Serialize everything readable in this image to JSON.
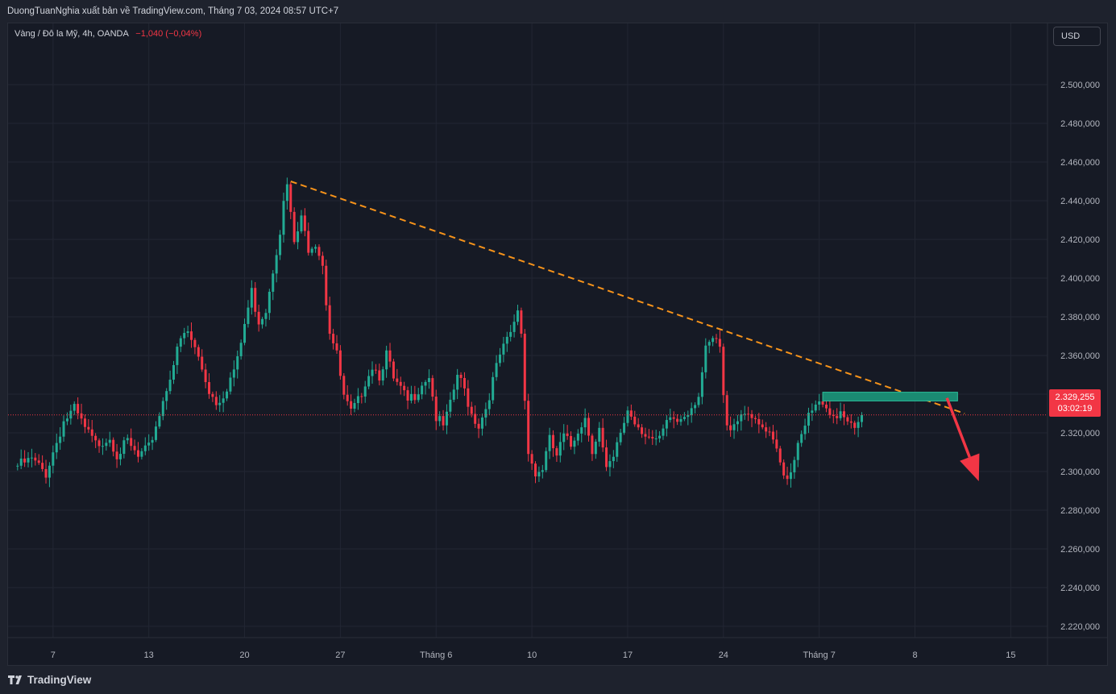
{
  "header": {
    "attribution": "DuongTuanNghia xuất bản về TradingView.com, Tháng 7 03, 2024 08:57 UTC+7"
  },
  "legend": {
    "symbol": "Vàng / Đô la Mỹ, 4h, OANDA",
    "change": "−1,040 (−0,04%)"
  },
  "currency_button": "USD",
  "price_badge": {
    "price": "2.329,255",
    "countdown": "03:02:19"
  },
  "footer": {
    "logo_text": "TradingView"
  },
  "colors": {
    "up": "#22ab94",
    "down": "#f23645",
    "trendline": "#f7931a",
    "zone": "#1a8a72",
    "arrow": "#f23645",
    "grid": "#222633",
    "axis_text": "#b2b5be"
  },
  "chart_data": {
    "type": "candlestick",
    "title": "Vàng / Đô la Mỹ, 4h, OANDA",
    "ylim": [
      2210,
      2510
    ],
    "y_ticks": [
      2500,
      2480,
      2460,
      2440,
      2420,
      2400,
      2380,
      2360,
      2340,
      2320,
      2300,
      2280,
      2260,
      2240,
      2220
    ],
    "y_tick_labels": [
      "2.500,000",
      "2.480,000",
      "2.460,000",
      "2.440,000",
      "2.420,000",
      "2.400,000",
      "2.380,000",
      "2.360,000",
      "2.340,000",
      "2.320,000",
      "2.300,000",
      "2.280,000",
      "2.260,000",
      "2.240,000",
      "2.220,000"
    ],
    "x_ticks": [
      "7",
      "13",
      "20",
      "27",
      "Tháng 6",
      "10",
      "17",
      "24",
      "Tháng 7",
      "8",
      "15"
    ],
    "last_price": 2329.255,
    "price_path": [
      [
        0,
        2303
      ],
      [
        4,
        2306
      ],
      [
        8,
        2299
      ],
      [
        10,
        2310
      ],
      [
        13,
        2326
      ],
      [
        16,
        2332
      ],
      [
        19,
        2322
      ],
      [
        22,
        2314
      ],
      [
        26,
        2318
      ],
      [
        28,
        2309
      ],
      [
        31,
        2315
      ],
      [
        34,
        2307
      ],
      [
        37,
        2312
      ],
      [
        40,
        2330
      ],
      [
        43,
        2350
      ],
      [
        46,
        2368
      ],
      [
        48,
        2372
      ],
      [
        51,
        2359
      ],
      [
        54,
        2342
      ],
      [
        56,
        2336
      ],
      [
        58,
        2340
      ],
      [
        60,
        2348
      ],
      [
        62,
        2357
      ],
      [
        64,
        2376
      ],
      [
        66,
        2393
      ],
      [
        67,
        2385
      ],
      [
        68,
        2378
      ],
      [
        70,
        2384
      ],
      [
        72,
        2405
      ],
      [
        74,
        2425
      ],
      [
        75,
        2438
      ],
      [
        76,
        2448
      ],
      [
        77,
        2432
      ],
      [
        78,
        2418
      ],
      [
        80,
        2430
      ],
      [
        82,
        2416
      ],
      [
        84,
        2419
      ],
      [
        86,
        2408
      ],
      [
        87,
        2388
      ],
      [
        88,
        2373
      ],
      [
        90,
        2360
      ],
      [
        92,
        2338
      ],
      [
        94,
        2330
      ],
      [
        96,
        2336
      ],
      [
        98,
        2347
      ],
      [
        100,
        2355
      ],
      [
        102,
        2350
      ],
      [
        104,
        2361
      ],
      [
        106,
        2347
      ],
      [
        108,
        2342
      ],
      [
        110,
        2336
      ],
      [
        112,
        2340
      ],
      [
        114,
        2346
      ],
      [
        116,
        2350
      ],
      [
        118,
        2328
      ],
      [
        120,
        2323
      ],
      [
        122,
        2334
      ],
      [
        124,
        2350
      ],
      [
        126,
        2342
      ],
      [
        128,
        2330
      ],
      [
        130,
        2324
      ],
      [
        132,
        2333
      ],
      [
        134,
        2347
      ],
      [
        136,
        2360
      ],
      [
        138,
        2367
      ],
      [
        140,
        2376
      ],
      [
        141,
        2384
      ],
      [
        142,
        2372
      ],
      [
        143,
        2337
      ],
      [
        144,
        2312
      ],
      [
        146,
        2298
      ],
      [
        148,
        2302
      ],
      [
        150,
        2316
      ],
      [
        152,
        2308
      ],
      [
        154,
        2318
      ],
      [
        156,
        2313
      ],
      [
        158,
        2322
      ],
      [
        160,
        2328
      ],
      [
        162,
        2312
      ],
      [
        164,
        2322
      ],
      [
        166,
        2300
      ],
      [
        168,
        2306
      ],
      [
        170,
        2320
      ],
      [
        172,
        2332
      ],
      [
        174,
        2326
      ],
      [
        176,
        2322
      ],
      [
        178,
        2318
      ],
      [
        180,
        2314
      ],
      [
        182,
        2320
      ],
      [
        184,
        2328
      ],
      [
        186,
        2326
      ],
      [
        188,
        2330
      ],
      [
        190,
        2334
      ],
      [
        192,
        2340
      ],
      [
        194,
        2362
      ],
      [
        196,
        2368
      ],
      [
        198,
        2364
      ],
      [
        199,
        2338
      ],
      [
        200,
        2322
      ],
      [
        202,
        2326
      ],
      [
        204,
        2330
      ],
      [
        206,
        2332
      ],
      [
        208,
        2324
      ],
      [
        210,
        2322
      ],
      [
        212,
        2318
      ],
      [
        214,
        2310
      ],
      [
        216,
        2298
      ],
      [
        218,
        2300
      ],
      [
        220,
        2316
      ],
      [
        222,
        2326
      ],
      [
        224,
        2330
      ],
      [
        226,
        2336
      ],
      [
        228,
        2330
      ],
      [
        230,
        2326
      ],
      [
        232,
        2332
      ],
      [
        234,
        2328
      ],
      [
        236,
        2325
      ],
      [
        238,
        2330
      ]
    ],
    "trendline": {
      "from": [
        77,
        2450
      ],
      "to": [
        267,
        2330
      ]
    },
    "zone": {
      "x": [
        227,
        265
      ],
      "y": [
        2336.5,
        2341
      ]
    },
    "arrow": {
      "from": [
        262,
        2338
      ],
      "to": [
        271,
        2295
      ]
    },
    "x_tick_positions": [
      10,
      37,
      64,
      91,
      118,
      145,
      172,
      199,
      226,
      253,
      280
    ],
    "x_view": [
      -2,
      289
    ]
  }
}
